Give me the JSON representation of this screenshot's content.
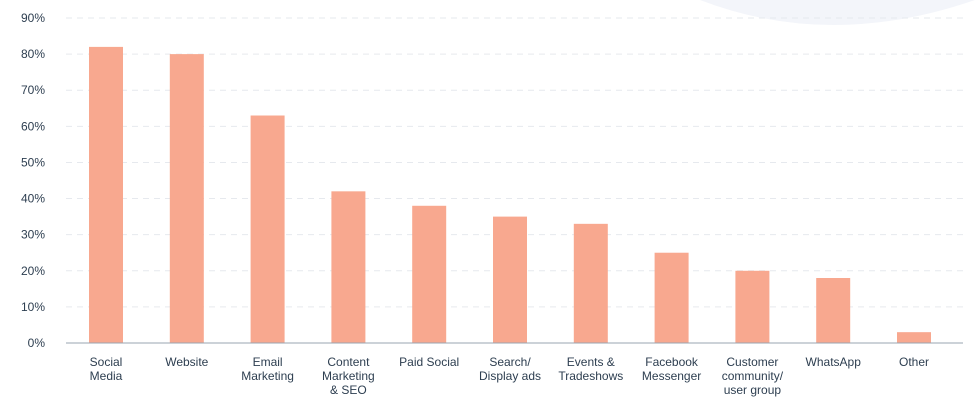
{
  "colors": {
    "bar": "#f8a88f",
    "grid": "#e6e9ee",
    "axis": "#9aa4b0",
    "text": "#2d3e50",
    "bg_shape": "#f3f5fa"
  },
  "chart_data": {
    "type": "bar",
    "title": "",
    "xlabel": "",
    "ylabel": "",
    "ylim": [
      0,
      90
    ],
    "yticks": [
      "0%",
      "10%",
      "20%",
      "30%",
      "40%",
      "50%",
      "60%",
      "70%",
      "80%",
      "90%"
    ],
    "grid": true,
    "categories": [
      [
        "Social",
        "Media"
      ],
      [
        "Website"
      ],
      [
        "Email",
        "Marketing"
      ],
      [
        "Content",
        "Marketing",
        "& SEO"
      ],
      [
        "Paid Social"
      ],
      [
        "Search/",
        "Display ads"
      ],
      [
        "Events &",
        "Tradeshows"
      ],
      [
        "Facebook",
        "Messenger"
      ],
      [
        "Customer",
        "community/",
        "user group"
      ],
      [
        "WhatsApp"
      ],
      [
        "Other"
      ]
    ],
    "values": [
      82,
      80,
      63,
      42,
      38,
      35,
      33,
      25,
      20,
      18,
      3
    ]
  }
}
